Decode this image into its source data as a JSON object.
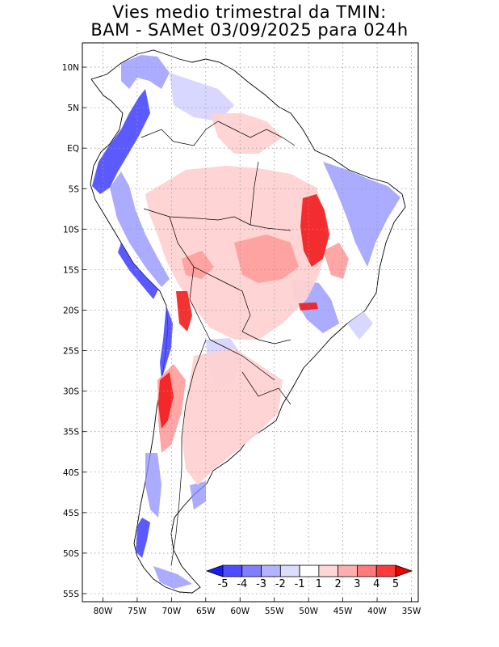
{
  "title_line1": "Vies medio trimestral da TMIN:",
  "title_line2": "BAM - SAMet 03/09/2025  para 024h",
  "map": {
    "lon_range": [
      -83,
      -34
    ],
    "lat_range": [
      -56,
      13
    ],
    "lat_ticks": [
      "10N",
      "5N",
      "EQ",
      "5S",
      "10S",
      "15S",
      "20S",
      "25S",
      "30S",
      "35S",
      "40S",
      "45S",
      "50S",
      "55S"
    ],
    "lon_ticks": [
      "80W",
      "75W",
      "70W",
      "65W",
      "60W",
      "55W",
      "50W",
      "45W",
      "40W",
      "35W"
    ],
    "grid": "dotted"
  },
  "colorbar": {
    "labels": [
      "-5",
      "-4",
      "-3",
      "-2",
      "-1",
      "1",
      "2",
      "3",
      "4",
      "5"
    ],
    "colors": [
      "#1a1aff",
      "#4d4dff",
      "#8080ff",
      "#b3b3ff",
      "#dcdcff",
      "#ffffff",
      "#ffd6d6",
      "#ffadad",
      "#ff7a7a",
      "#ff3a3a",
      "#f00000"
    ]
  }
}
